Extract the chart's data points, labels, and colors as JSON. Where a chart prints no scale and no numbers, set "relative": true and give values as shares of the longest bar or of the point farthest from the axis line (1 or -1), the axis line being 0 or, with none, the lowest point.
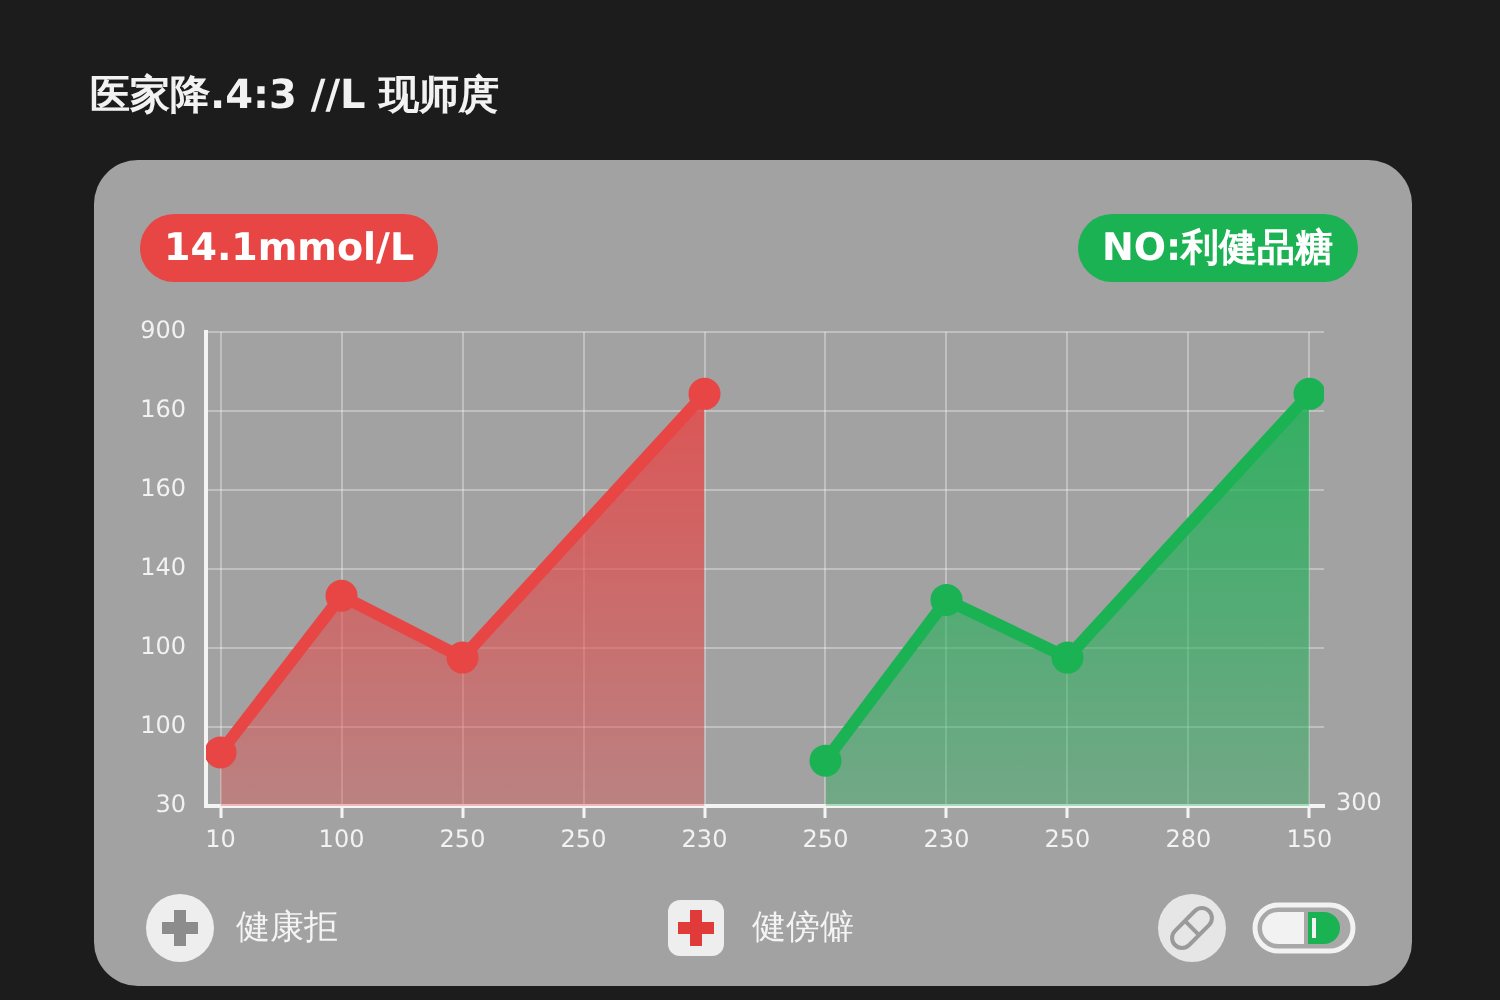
{
  "chart_data": {
    "type": "area",
    "title": "医家降.4:3 //L 现师庹",
    "categories": [
      "10",
      "100",
      "250",
      "250",
      "230",
      "250",
      "230",
      "250",
      "280",
      "150"
    ],
    "relative": true,
    "series": [
      {
        "name": "14.1mmol/L",
        "color": "#e84545",
        "values": [
          0.13,
          0.51,
          0.36,
          null,
          1,
          null,
          null,
          null,
          null,
          null
        ]
      },
      {
        "name": "NO:利健品糖",
        "color": "#1bb254",
        "values": [
          null,
          null,
          null,
          null,
          null,
          0.11,
          0.5,
          0.36,
          null,
          1
        ]
      }
    ],
    "marker": "circle",
    "line_style": "solid",
    "grid": true,
    "annotations": [
      "900",
      "160",
      "160",
      "140",
      "100",
      "100",
      "30",
      "300",
      "健康拒",
      "健傍僻"
    ]
  }
}
